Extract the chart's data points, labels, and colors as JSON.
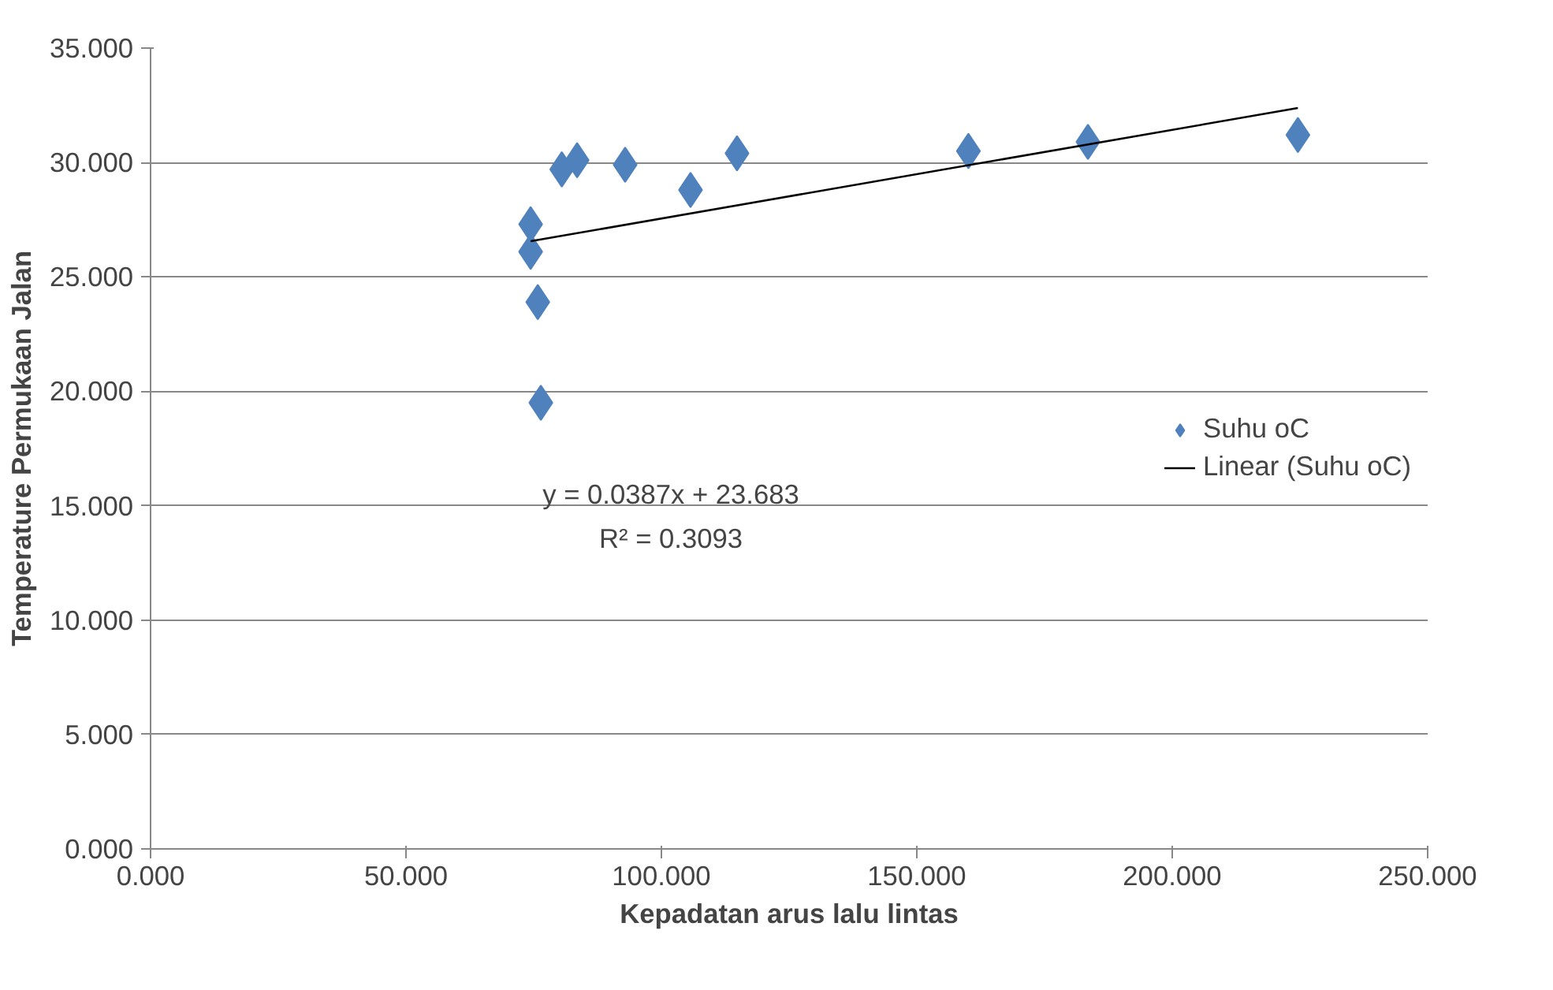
{
  "chart_data": {
    "type": "scatter",
    "xlabel": "Kepadatan arus lalu lintas",
    "ylabel": "Temperature Permukaan Jalan",
    "xlim": [
      0,
      250
    ],
    "ylim": [
      0,
      35
    ],
    "xticks": [
      {
        "value": 0,
        "label": "0.000"
      },
      {
        "value": 50,
        "label": "50.000"
      },
      {
        "value": 100,
        "label": "100.000"
      },
      {
        "value": 150,
        "label": "150.000"
      },
      {
        "value": 200,
        "label": "200.000"
      },
      {
        "value": 250,
        "label": "250.000"
      }
    ],
    "yticks": [
      {
        "value": 0,
        "label": "0.000"
      },
      {
        "value": 5,
        "label": "5.000"
      },
      {
        "value": 10,
        "label": "10.000"
      },
      {
        "value": 15,
        "label": "15.000"
      },
      {
        "value": 20,
        "label": "20.000"
      },
      {
        "value": 25,
        "label": "25.000"
      },
      {
        "value": 30,
        "label": "30.000"
      },
      {
        "value": 35,
        "label": "35.000"
      }
    ],
    "grid": "y",
    "legend": "right",
    "annotations": [
      "y = 0.0387x + 23.683",
      "R² = 0.3093"
    ],
    "series": [
      {
        "name": "Suhu oC",
        "marker": "diamond",
        "color": "#4f81bd",
        "x": [
          74.4,
          74.4,
          75.8,
          76.4,
          80.5,
          83.5,
          92.9,
          105.7,
          114.8,
          160.1,
          183.5,
          224.6
        ],
        "values": [
          27.3,
          26.1,
          23.9,
          19.5,
          29.7,
          30.1,
          29.9,
          28.8,
          30.4,
          30.5,
          30.9,
          31.2
        ]
      },
      {
        "name": "Linear (Suhu oC)",
        "type": "line",
        "color": "#000000",
        "x": [
          74.4,
          224.6
        ],
        "values": [
          26.56,
          32.38
        ]
      }
    ]
  }
}
